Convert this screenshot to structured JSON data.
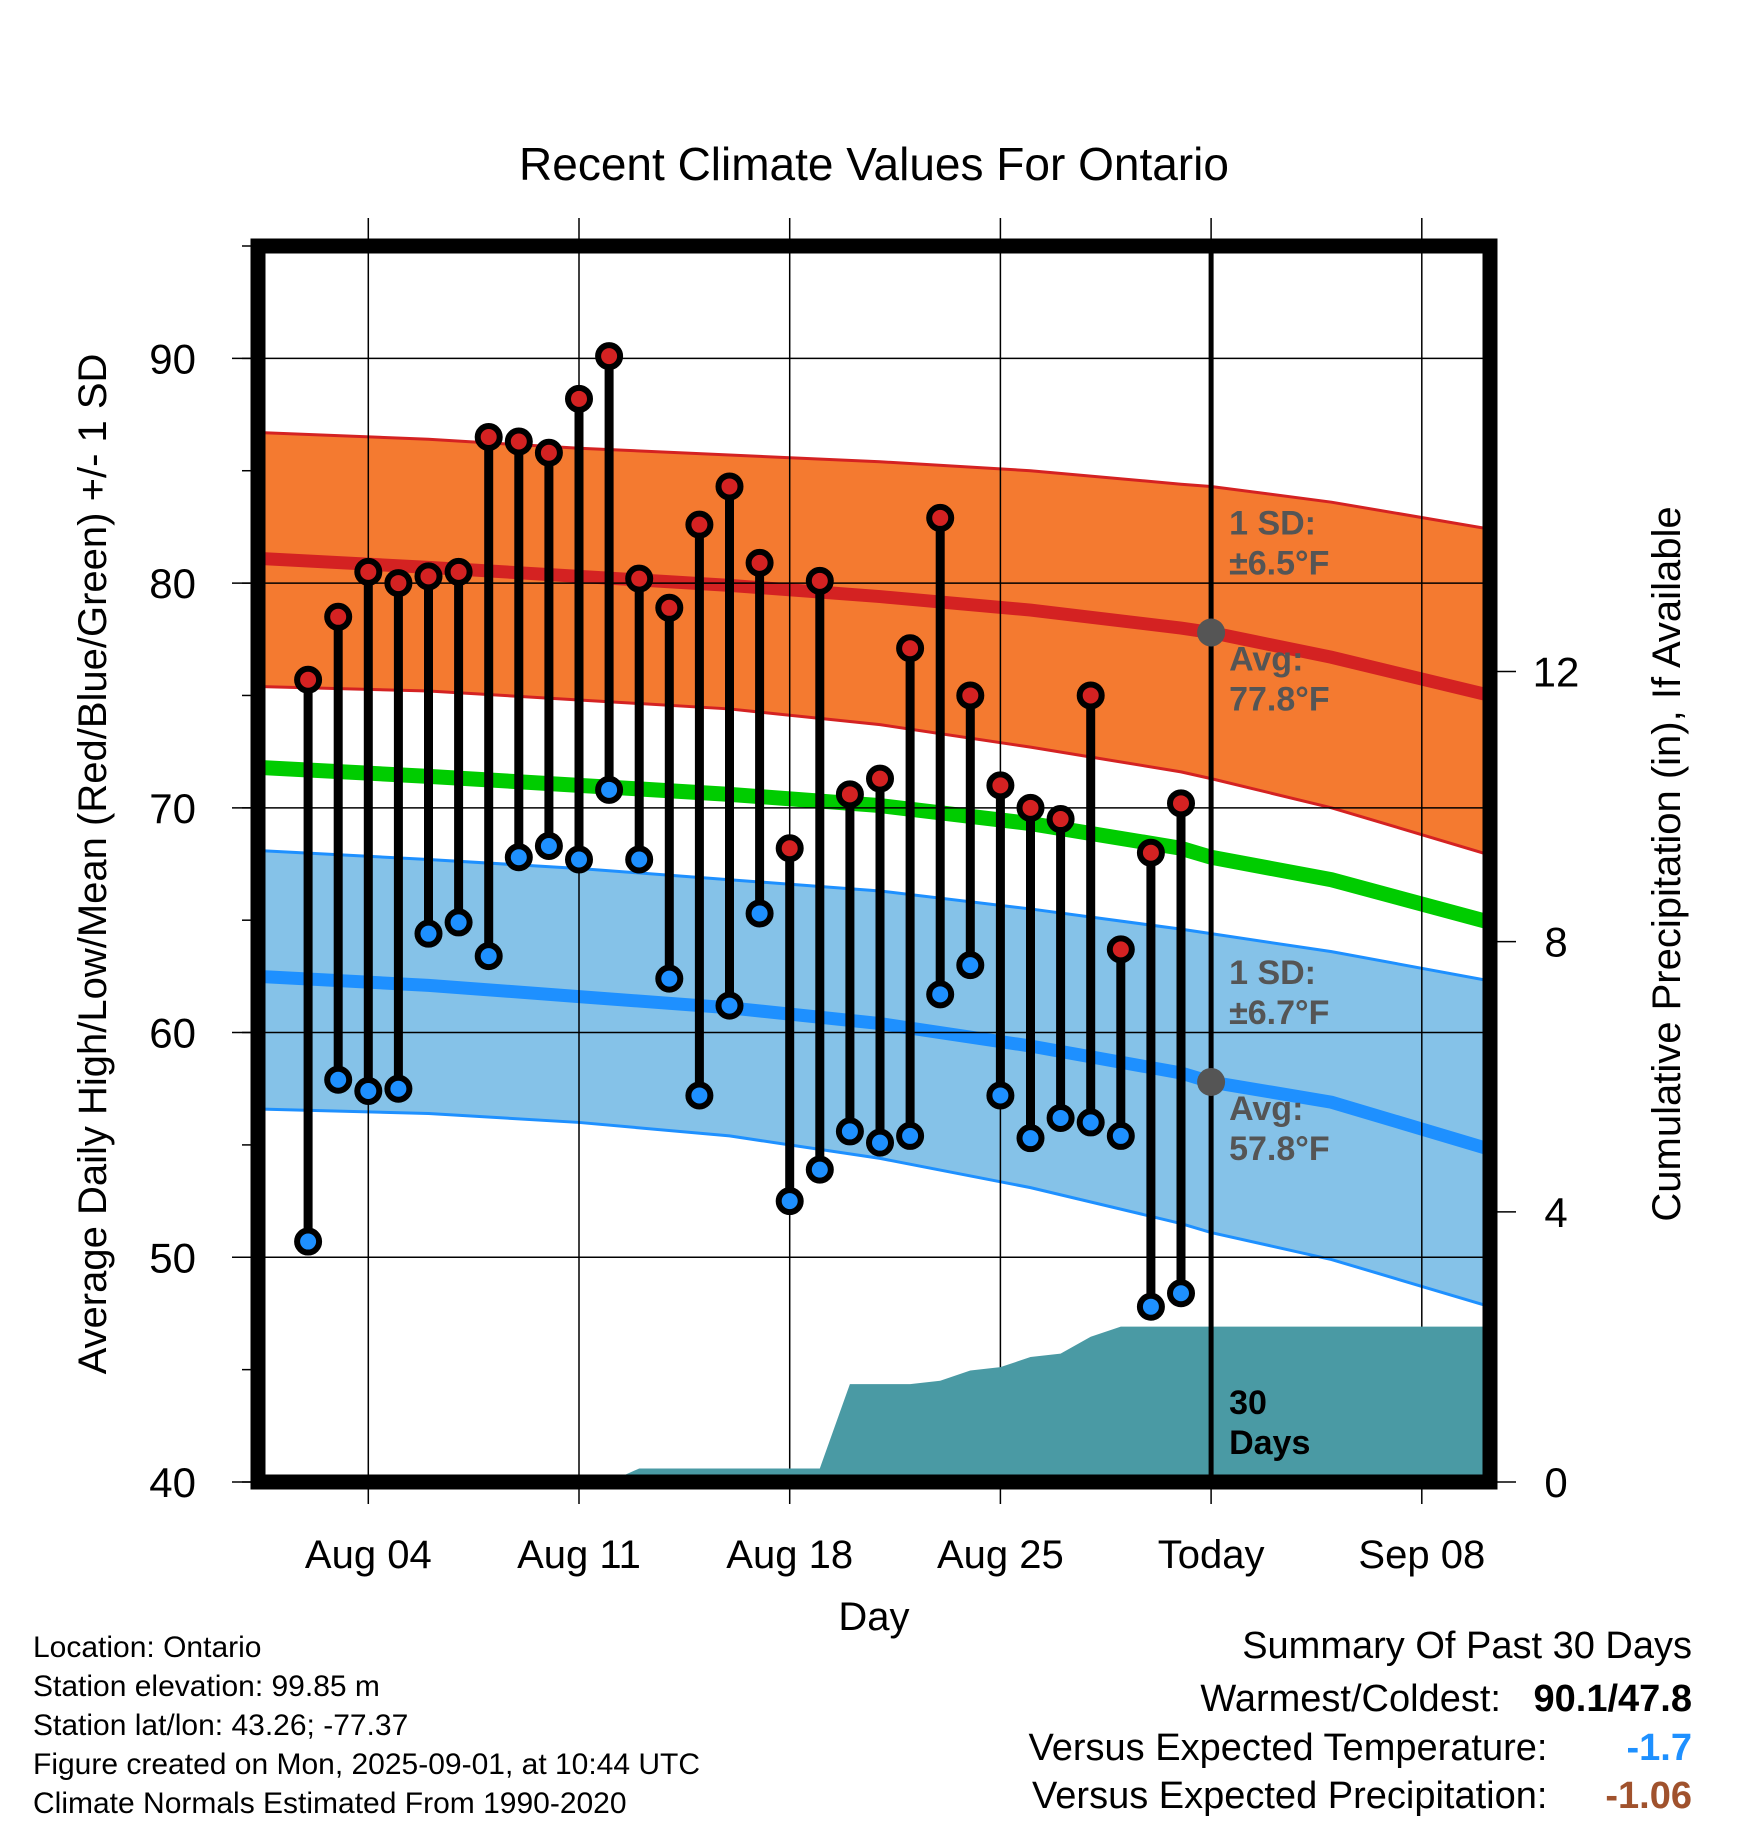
{
  "chart_data": {
    "type": "line",
    "title": "Recent Climate Values For Ontario",
    "xlabel": "Day",
    "ylabel_left": "Average Daily High/Low/Mean (Red/Blue/Green) +/- 1 SD",
    "ylabel_right": "Cumulative Precipitation (in), If Available",
    "ylim_left": [
      40,
      95
    ],
    "ylim_right": [
      0,
      18.3
    ],
    "yticks_left": [
      40,
      50,
      60,
      70,
      80,
      90
    ],
    "yticks_right": [
      0,
      4,
      8,
      12
    ],
    "x_start": "Aug 01",
    "x_end": "Sep 10",
    "x_tick_labels": [
      "Aug 04",
      "Aug 11",
      "Aug 18",
      "Aug 25",
      "Today",
      "Sep 08"
    ],
    "x_tick_dates": [
      "Aug 04",
      "Aug 11",
      "Aug 18",
      "Aug 25",
      "Sep 01",
      "Sep 08"
    ],
    "today": "Sep 01",
    "grid": true,
    "colors": {
      "high_band": "#f47a30",
      "high_line": "#d42222",
      "low_band": "#85c2e8",
      "low_line": "#1e90ff",
      "mean_line": "#00cc00",
      "precip": "#4a9aa4",
      "high_marker": "#d42222",
      "low_marker": "#1e90ff",
      "annotation": "#555555"
    },
    "normals": {
      "dates": [
        "Aug 01",
        "Aug 06",
        "Aug 11",
        "Aug 16",
        "Aug 21",
        "Aug 26",
        "Aug 31",
        "Sep 01",
        "Sep 05",
        "Sep 10"
      ],
      "high_avg": [
        81.1,
        80.7,
        80.3,
        79.9,
        79.4,
        78.8,
        78.0,
        77.8,
        76.7,
        75.0
      ],
      "high_upper": [
        86.7,
        86.4,
        86.0,
        85.7,
        85.4,
        85.0,
        84.4,
        84.3,
        83.6,
        82.4
      ],
      "high_lower": [
        75.4,
        75.2,
        74.8,
        74.4,
        73.7,
        72.7,
        71.6,
        71.3,
        70.0,
        67.9
      ],
      "mean": [
        71.8,
        71.4,
        71.0,
        70.6,
        70.1,
        69.3,
        68.2,
        67.8,
        66.8,
        64.9
      ],
      "low_avg": [
        62.5,
        62.1,
        61.6,
        61.1,
        60.4,
        59.4,
        58.2,
        57.8,
        56.9,
        54.8
      ],
      "low_upper": [
        68.1,
        67.7,
        67.3,
        66.8,
        66.3,
        65.5,
        64.6,
        64.4,
        63.6,
        62.3
      ],
      "low_lower": [
        56.6,
        56.4,
        56.0,
        55.4,
        54.4,
        53.1,
        51.5,
        51.1,
        49.9,
        47.8
      ]
    },
    "series": [
      {
        "name": "Daily High",
        "dates": [
          "Aug 02",
          "Aug 03",
          "Aug 04",
          "Aug 05",
          "Aug 06",
          "Aug 07",
          "Aug 08",
          "Aug 09",
          "Aug 10",
          "Aug 11",
          "Aug 12",
          "Aug 13",
          "Aug 14",
          "Aug 15",
          "Aug 16",
          "Aug 17",
          "Aug 18",
          "Aug 19",
          "Aug 20",
          "Aug 21",
          "Aug 22",
          "Aug 23",
          "Aug 24",
          "Aug 25",
          "Aug 26",
          "Aug 27",
          "Aug 28",
          "Aug 29",
          "Aug 30",
          "Aug 31"
        ],
        "values": [
          75.7,
          78.5,
          80.5,
          80.0,
          80.3,
          80.5,
          86.5,
          86.3,
          85.8,
          88.2,
          90.1,
          80.2,
          78.9,
          82.6,
          84.3,
          80.9,
          68.2,
          80.1,
          70.6,
          71.3,
          77.1,
          82.9,
          75.0,
          71.0,
          70.0,
          69.5,
          75.0,
          63.7,
          68.0,
          70.2
        ]
      },
      {
        "name": "Daily Low",
        "dates": [
          "Aug 02",
          "Aug 03",
          "Aug 04",
          "Aug 05",
          "Aug 06",
          "Aug 07",
          "Aug 08",
          "Aug 09",
          "Aug 10",
          "Aug 11",
          "Aug 12",
          "Aug 13",
          "Aug 14",
          "Aug 15",
          "Aug 16",
          "Aug 17",
          "Aug 18",
          "Aug 19",
          "Aug 20",
          "Aug 21",
          "Aug 22",
          "Aug 23",
          "Aug 24",
          "Aug 25",
          "Aug 26",
          "Aug 27",
          "Aug 28",
          "Aug 29",
          "Aug 30",
          "Aug 31"
        ],
        "values": [
          50.7,
          57.9,
          57.4,
          57.5,
          64.4,
          64.9,
          63.4,
          67.8,
          68.3,
          67.7,
          70.8,
          67.7,
          62.4,
          57.2,
          61.2,
          65.3,
          52.5,
          53.9,
          55.6,
          55.1,
          55.4,
          61.7,
          63.0,
          57.2,
          55.3,
          56.2,
          56.0,
          55.4,
          47.8,
          48.4
        ]
      },
      {
        "name": "Cumulative Precipitation",
        "dates": [
          "Aug 01",
          "Aug 12",
          "Aug 13",
          "Aug 19",
          "Aug 20",
          "Aug 22",
          "Aug 23",
          "Aug 24",
          "Aug 25",
          "Aug 26",
          "Aug 27",
          "Aug 28",
          "Aug 29",
          "Aug 30",
          "Sep 10"
        ],
        "values": [
          0,
          0,
          0.2,
          0.2,
          1.45,
          1.45,
          1.5,
          1.65,
          1.7,
          1.85,
          1.9,
          2.15,
          2.3,
          2.3,
          2.3
        ]
      }
    ],
    "annotations": {
      "high_sd_label": "1 SD:",
      "high_sd_value": "±6.5°F",
      "high_avg_label": "Avg:",
      "high_avg_value": "77.8°F",
      "low_sd_label": "1 SD:",
      "low_sd_value": "±6.7°F",
      "low_avg_label": "Avg:",
      "low_avg_value": "57.8°F",
      "precip_label_1": "30",
      "precip_label_2": "Days"
    }
  },
  "info": {
    "location": "Location: Ontario",
    "elevation": "Station elevation: 99.85 m",
    "latlon": "Station lat/lon: 43.26; -77.37",
    "created": "Figure created on Mon, 2025-09-01, at 10:44 UTC",
    "normals": "Climate Normals Estimated From 1990-2020"
  },
  "summary": {
    "title": "Summary Of Past 30 Days",
    "warmest_label": "Warmest/Coldest:",
    "warmest_value": "90.1/47.8",
    "temp_label": "Versus Expected Temperature:",
    "temp_value": "-1.7",
    "temp_color": "#1e90ff",
    "precip_label": "Versus Expected Precipitation:",
    "precip_value": "-1.06",
    "precip_color": "#a0522d"
  }
}
